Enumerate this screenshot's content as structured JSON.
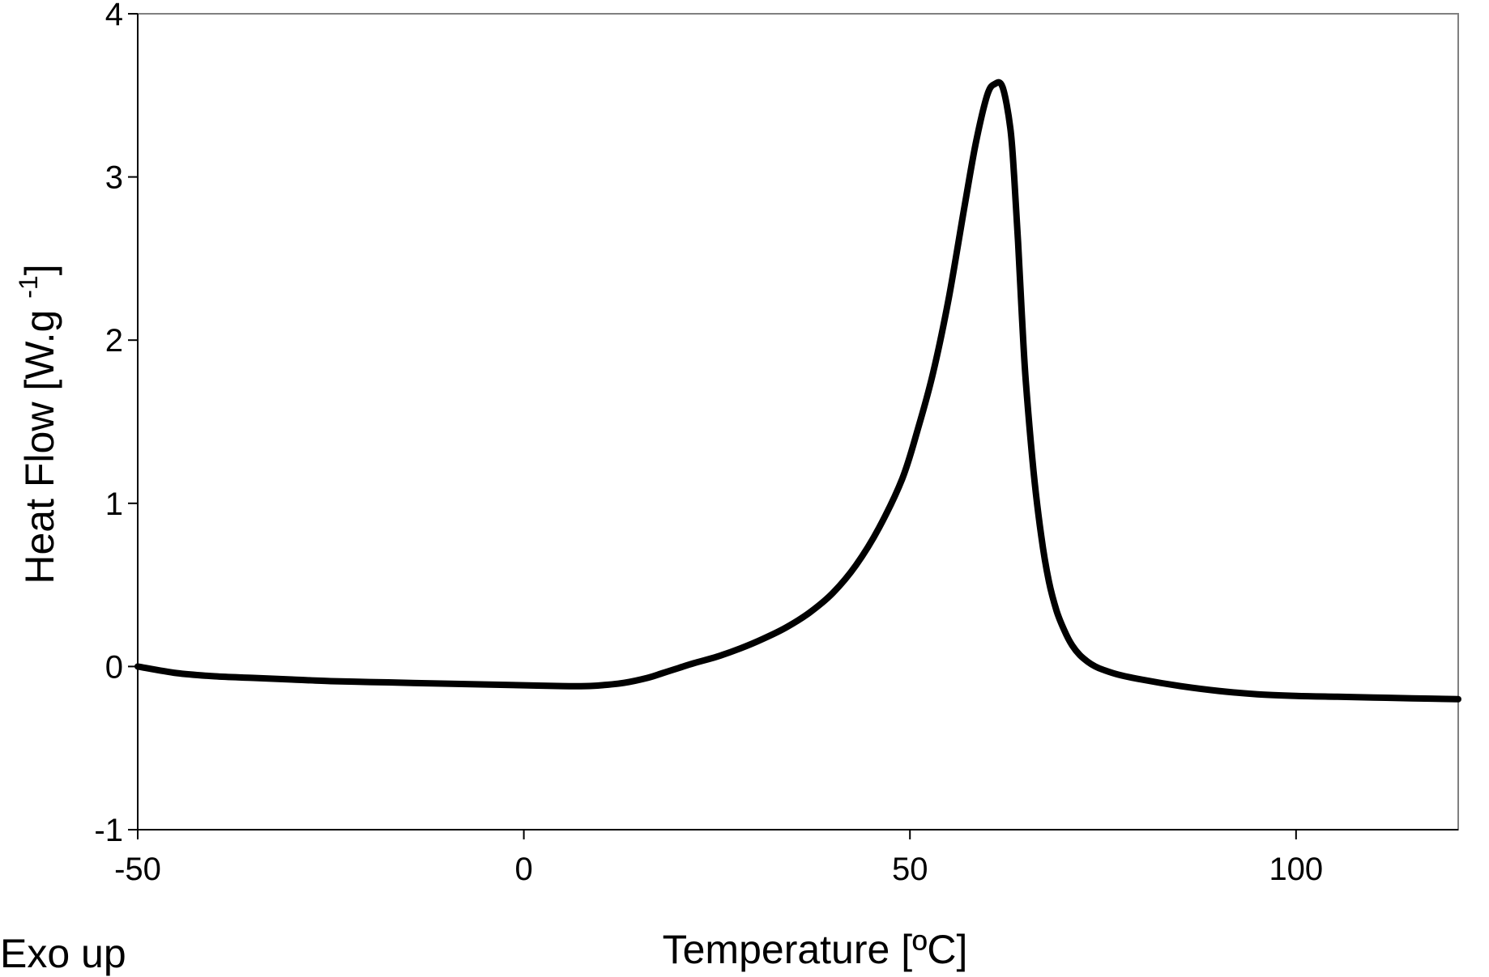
{
  "chart_data": {
    "type": "line",
    "xlabel": "Temperature [ºC]",
    "ylabel_main": "Heat Flow [W.g ",
    "ylabel_sup": "-1",
    "ylabel_end": "]",
    "annotation": "Exo up",
    "xlim": [
      -50,
      121
    ],
    "ylim": [
      -1,
      4
    ],
    "xticks": [
      -50,
      0,
      50,
      100
    ],
    "yticks": [
      -1,
      0,
      1,
      2,
      3,
      4
    ],
    "grid": false,
    "colors": {
      "line": "#000000",
      "frame": "#808080",
      "axis": "#000000"
    },
    "series": [
      {
        "x": [
          -50,
          -45,
          -40,
          -35,
          -30,
          -25,
          -20,
          -15,
          -10,
          -5,
          0,
          5,
          8,
          10,
          13,
          16,
          18,
          20,
          22,
          25,
          28,
          31,
          34,
          37,
          40,
          43,
          46,
          49,
          51,
          53,
          55,
          57,
          58.5,
          60,
          61,
          62,
          63,
          63.5,
          64,
          64.5,
          65,
          66,
          67,
          68,
          69,
          70,
          71,
          72,
          73,
          74,
          75,
          77,
          80,
          85,
          90,
          95,
          100,
          105,
          110,
          115,
          121
        ],
        "y": [
          0.0,
          -0.04,
          -0.06,
          -0.07,
          -0.08,
          -0.09,
          -0.095,
          -0.1,
          -0.105,
          -0.11,
          -0.115,
          -0.12,
          -0.12,
          -0.115,
          -0.1,
          -0.07,
          -0.04,
          -0.01,
          0.02,
          0.06,
          0.11,
          0.17,
          0.24,
          0.33,
          0.45,
          0.62,
          0.85,
          1.15,
          1.45,
          1.8,
          2.25,
          2.8,
          3.2,
          3.5,
          3.57,
          3.55,
          3.3,
          3.0,
          2.6,
          2.15,
          1.75,
          1.2,
          0.8,
          0.52,
          0.34,
          0.22,
          0.13,
          0.07,
          0.03,
          0.0,
          -0.02,
          -0.05,
          -0.08,
          -0.12,
          -0.15,
          -0.17,
          -0.18,
          -0.185,
          -0.19,
          -0.195,
          -0.2
        ]
      }
    ]
  }
}
